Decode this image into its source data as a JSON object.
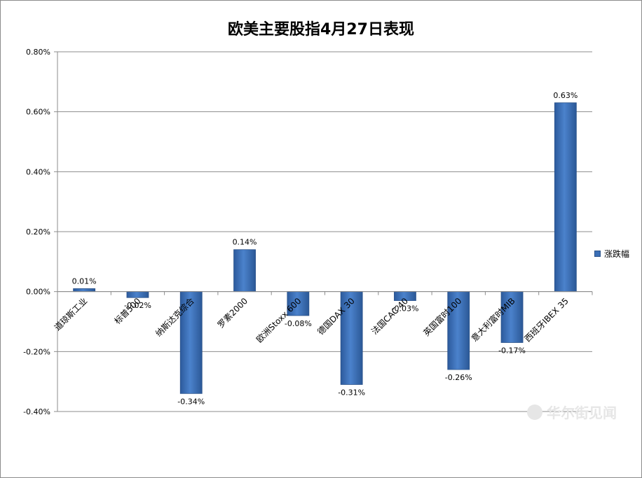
{
  "chart_data": {
    "type": "bar",
    "title": "欧美主要股指4月27日表现",
    "categories": [
      "道琼斯工业",
      "标普500",
      "纳斯达克综合",
      "罗素2000",
      "欧洲Stoxx 600",
      "德国DAX 30",
      "法国CAC 40",
      "英国富时100",
      "意大利富时MIB",
      "西班牙IBEX 35"
    ],
    "series": [
      {
        "name": "涨跌幅",
        "values": [
          0.01,
          -0.02,
          -0.34,
          0.14,
          -0.08,
          -0.31,
          -0.03,
          -0.26,
          -0.17,
          0.63
        ]
      }
    ],
    "data_labels": [
      "0.01%",
      "-0.02%",
      "-0.34%",
      "0.14%",
      "-0.08%",
      "-0.31%",
      "-0.03%",
      "-0.26%",
      "-0.17%",
      "0.63%"
    ],
    "y_ticks": [
      "0.80%",
      "0.60%",
      "0.40%",
      "0.20%",
      "0.00%",
      "-0.20%",
      "-0.40%"
    ],
    "ylim": [
      -0.4,
      0.8
    ],
    "grid": true,
    "legend_position": "right",
    "bar_color": "#3b6fb6"
  },
  "watermark": "华尔街见闻"
}
